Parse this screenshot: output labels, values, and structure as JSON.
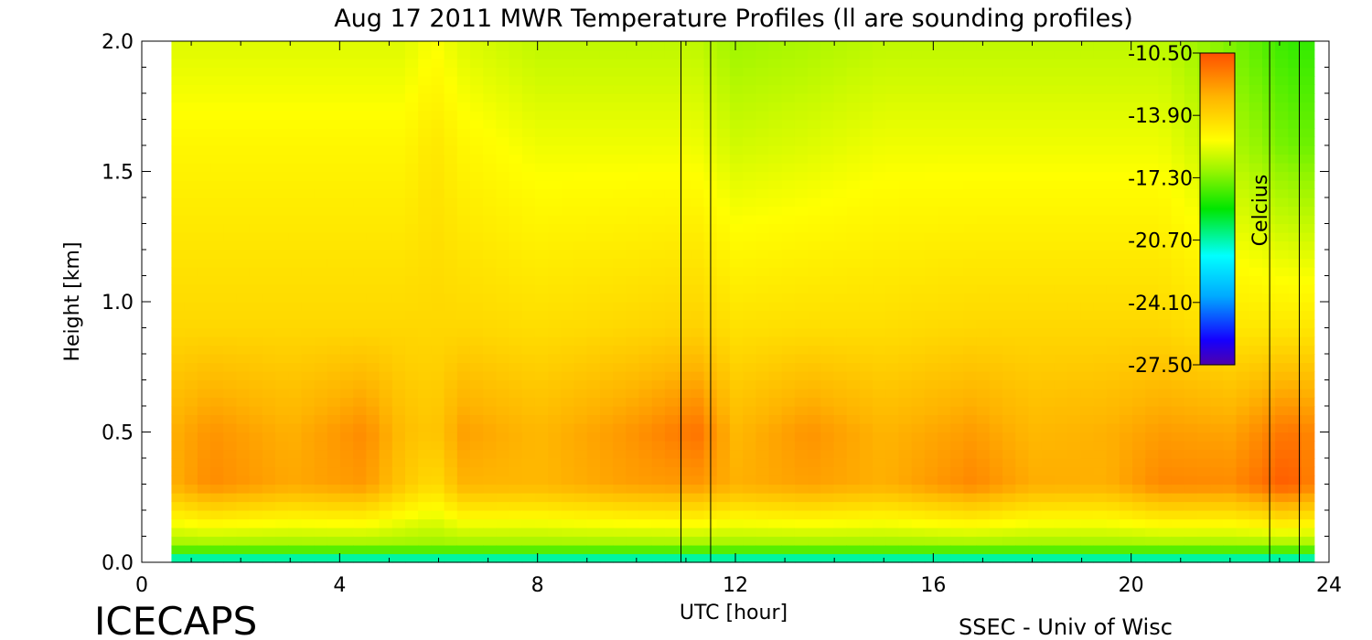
{
  "chart_data": {
    "type": "heatmap",
    "title": "Aug 17 2011 MWR Temperature Profiles (ll are sounding profiles)",
    "xlabel": "UTC [hour]",
    "ylabel": "Height [km]",
    "xlim": [
      0,
      24
    ],
    "ylim": [
      0,
      2
    ],
    "x_ticks": [
      "0",
      "4",
      "8",
      "12",
      "16",
      "20",
      "24"
    ],
    "x_tick_values": [
      0,
      4,
      8,
      12,
      16,
      20,
      24
    ],
    "y_ticks": [
      "0.0",
      "0.5",
      "1.0",
      "1.5",
      "2.0"
    ],
    "y_tick_values": [
      0,
      0.5,
      1,
      1.5,
      2
    ],
    "data_x_range": [
      0.6,
      23.7
    ],
    "colorbar": {
      "label": "Celcius",
      "ticks": [
        "-10.50",
        "-13.90",
        "-17.30",
        "-20.70",
        "-24.10",
        "-27.50"
      ],
      "range": [
        -27.5,
        -10.5
      ]
    },
    "sounding_times": [
      10.9,
      11.5,
      22.8,
      23.4
    ],
    "profile_bands": [
      {
        "x": 0.6,
        "tops": -15,
        "upper": -14,
        "mid": -12.8,
        "low": -12.8,
        "surf": -17
      },
      {
        "x": 1.4,
        "tops": -15,
        "upper": -14,
        "mid": -12.1,
        "low": -11.9,
        "surf": -17
      },
      {
        "x": 3.0,
        "tops": -15,
        "upper": -14,
        "mid": -12.8,
        "low": -12.6,
        "surf": -17
      },
      {
        "x": 4.5,
        "tops": -15,
        "upper": -14,
        "mid": -11.9,
        "low": -12.2,
        "surf": -17
      },
      {
        "x": 5.3,
        "tops": -15,
        "upper": -14,
        "mid": -13.2,
        "low": -13.5,
        "surf": -17
      },
      {
        "x": 5.9,
        "tops": -14.5,
        "upper": -14,
        "mid": -13.5,
        "low": -14.2,
        "surf": -17
      },
      {
        "x": 6.5,
        "tops": -15,
        "upper": -14,
        "mid": -12.4,
        "low": -12.9,
        "surf": -17
      },
      {
        "x": 8.0,
        "tops": -15.5,
        "upper": -14.2,
        "mid": -13.0,
        "low": -13.0,
        "surf": -17
      },
      {
        "x": 9.8,
        "tops": -15.5,
        "upper": -14,
        "mid": -12.2,
        "low": -12.4,
        "surf": -17
      },
      {
        "x": 11.2,
        "tops": -15.5,
        "upper": -13.8,
        "mid": -11.3,
        "low": -12.2,
        "surf": -17
      },
      {
        "x": 12.0,
        "tops": -16,
        "upper": -14.3,
        "mid": -13.0,
        "low": -12.8,
        "surf": -17
      },
      {
        "x": 13.5,
        "tops": -15.8,
        "upper": -14.2,
        "mid": -12.1,
        "low": -12.4,
        "surf": -17
      },
      {
        "x": 15.0,
        "tops": -15.5,
        "upper": -14.2,
        "mid": -12.9,
        "low": -12.8,
        "surf": -17
      },
      {
        "x": 16.8,
        "tops": -15.5,
        "upper": -14,
        "mid": -12.3,
        "low": -11.8,
        "surf": -17
      },
      {
        "x": 18.0,
        "tops": -15.5,
        "upper": -14,
        "mid": -13.0,
        "low": -12.7,
        "surf": -17
      },
      {
        "x": 19.5,
        "tops": -15.5,
        "upper": -14,
        "mid": -12.8,
        "low": -12.8,
        "surf": -17
      },
      {
        "x": 20.6,
        "tops": -15.5,
        "upper": -14,
        "mid": -12.3,
        "low": -11.8,
        "surf": -17
      },
      {
        "x": 22.0,
        "tops": -16.5,
        "upper": -14.5,
        "mid": -12.5,
        "low": -11.9,
        "surf": -17
      },
      {
        "x": 23.2,
        "tops": -17.5,
        "upper": -14.5,
        "mid": -11.3,
        "low": -10.7,
        "surf": -17
      },
      {
        "x": 23.7,
        "tops": -17.5,
        "upper": -14.5,
        "mid": -11.9,
        "low": -11.8,
        "surf": -17
      }
    ]
  },
  "branding": {
    "left": "ICECAPS",
    "right": "SSEC - Univ of Wisc"
  }
}
